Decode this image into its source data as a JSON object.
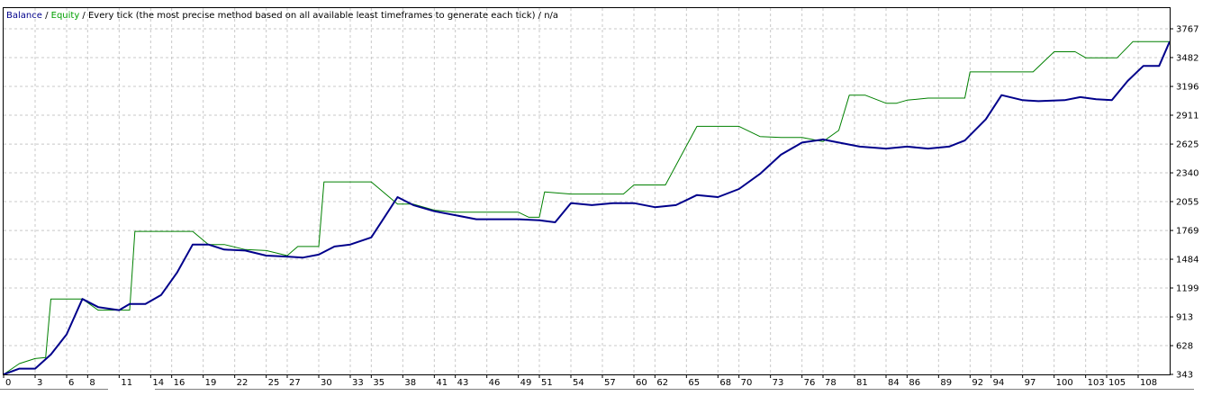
{
  "legend": {
    "balance": "Balance",
    "sep1": " / ",
    "equity": "Equity",
    "sep2": " / ",
    "description": "Every tick (the most precise method based on all available least timeframes to generate each tick)",
    "sep3": " / ",
    "na": "n/a"
  },
  "colors": {
    "balance": "#00008b",
    "equity": "#008000",
    "legend_balance": "#00008b",
    "legend_equity": "#00a000",
    "grid": "#c8c8c8",
    "frame": "#000000"
  },
  "chart_data": {
    "type": "line",
    "title": "",
    "xlabel": "",
    "ylabel": "",
    "xlim": [
      0,
      111
    ],
    "ylim": [
      343,
      3767
    ],
    "grid": true,
    "legend_position": "top-left",
    "y_ticks": [
      "3767",
      "3482",
      "3196",
      "2911",
      "2625",
      "2340",
      "2055",
      "1769",
      "1484",
      "1199",
      "913",
      "628",
      "343"
    ],
    "x_ticks": [
      "0",
      "3",
      "6",
      "8",
      "11",
      "14",
      "16",
      "19",
      "22",
      "25",
      "27",
      "30",
      "33",
      "35",
      "38",
      "41",
      "43",
      "46",
      "49",
      "51",
      "54",
      "57",
      "60",
      "62",
      "65",
      "68",
      "70",
      "73",
      "76",
      "78",
      "81",
      "84",
      "86",
      "89",
      "92",
      "94",
      "97",
      "100",
      "103",
      "105",
      "108"
    ],
    "series": [
      {
        "name": "Balance",
        "x": [
          0,
          1.5,
          3,
          4.5,
          6,
          7.5,
          9,
          11,
          12,
          13.5,
          15,
          16.5,
          18,
          19.5,
          21,
          23,
          25,
          27,
          28.5,
          30,
          31.5,
          33,
          35,
          36,
          37.5,
          39,
          41,
          43,
          45,
          47,
          49,
          51,
          52.5,
          54,
          56,
          58,
          60,
          62,
          64,
          66,
          68,
          70,
          72,
          74,
          76,
          78,
          80,
          81.5,
          84,
          86,
          88,
          90,
          91.5,
          93.5,
          95,
          97,
          98.5,
          101,
          102.5,
          104,
          105.5,
          107,
          108.5,
          110,
          111
        ],
        "y": [
          343,
          400,
          400,
          540,
          740,
          1090,
          1010,
          980,
          1040,
          1040,
          1130,
          1350,
          1630,
          1630,
          1580,
          1570,
          1520,
          1510,
          1500,
          1530,
          1610,
          1630,
          1700,
          1860,
          2100,
          2020,
          1960,
          1920,
          1880,
          1880,
          1880,
          1870,
          1850,
          2040,
          2020,
          2040,
          2040,
          2000,
          2020,
          2120,
          2100,
          2180,
          2330,
          2520,
          2640,
          2670,
          2630,
          2600,
          2580,
          2600,
          2580,
          2600,
          2660,
          2870,
          3110,
          3060,
          3050,
          3060,
          3090,
          3070,
          3060,
          3250,
          3400,
          3400,
          3640
        ]
      },
      {
        "name": "Equity",
        "x": [
          0,
          1.5,
          3,
          4,
          4.5,
          6,
          7.5,
          9,
          11,
          12,
          12.5,
          18,
          19.5,
          21,
          23,
          25,
          27,
          28,
          30,
          30.5,
          33,
          35,
          37.5,
          39,
          41,
          43,
          45,
          47,
          49,
          50,
          51,
          51.5,
          54,
          57,
          59,
          60,
          62,
          63,
          66,
          68,
          70,
          72,
          74,
          76,
          78,
          79.5,
          80.5,
          82,
          84,
          85,
          86,
          88,
          90,
          91.5,
          92,
          95,
          97,
          98,
          100,
          102,
          103,
          104.5,
          106,
          107.5,
          109,
          111
        ],
        "y": [
          343,
          450,
          500,
          510,
          1090,
          1090,
          1090,
          980,
          980,
          980,
          1760,
          1760,
          1630,
          1630,
          1580,
          1570,
          1520,
          1610,
          1610,
          2250,
          2250,
          2250,
          2030,
          2030,
          1970,
          1950,
          1950,
          1950,
          1950,
          1900,
          1900,
          2150,
          2130,
          2130,
          2130,
          2220,
          2220,
          2220,
          2800,
          2800,
          2800,
          2700,
          2690,
          2690,
          2650,
          2760,
          3110,
          3110,
          3030,
          3030,
          3060,
          3080,
          3080,
          3080,
          3340,
          3340,
          3340,
          3340,
          3540,
          3540,
          3480,
          3480,
          3480,
          3640,
          3640,
          3640
        ]
      }
    ]
  }
}
